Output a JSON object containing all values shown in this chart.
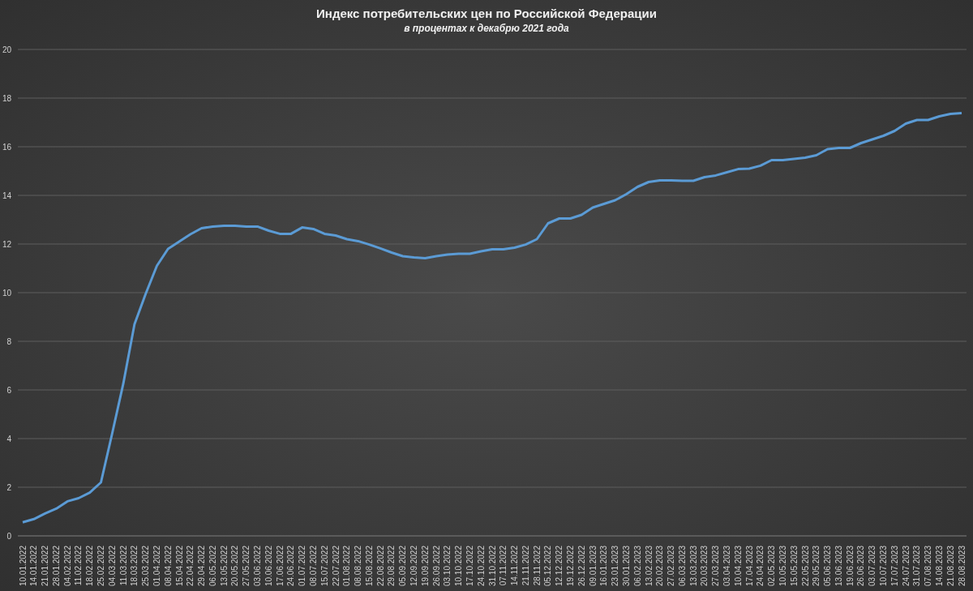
{
  "chart_data": {
    "type": "line",
    "title": "Индекс потребительских цен по Российской Федерации",
    "subtitle": "в процентах к декабрю 2021 года",
    "categories": [
      "10.01.2022",
      "14.01.2022",
      "21.01.2022",
      "28.01.2022",
      "04.02.2022",
      "11.02.2022",
      "18.02.2022",
      "25.02.2022",
      "04.03.2022",
      "11.03.2022",
      "18.03.2022",
      "25.03.2022",
      "01.04.2022",
      "08.04.2022",
      "15.04.2022",
      "22.04.2022",
      "29.04.2022",
      "06.05.2022",
      "13.05.2022",
      "20.05.2022",
      "27.05.2022",
      "03.06.2022",
      "10.06.2022",
      "17.06.2022",
      "24.06.2022",
      "01.07.2022",
      "08.07.2022",
      "15.07.2022",
      "22.07.2022",
      "01.08.2022",
      "08.08.2022",
      "15.08.2022",
      "22.08.2022",
      "29.08.2022",
      "05.09.2022",
      "12.09.2022",
      "19.09.2022",
      "26.09.2022",
      "03.10.2022",
      "10.10.2022",
      "17.10.2022",
      "24.10.2022",
      "31.10.2022",
      "07.11.2022",
      "14.11.2022",
      "21.11.2022",
      "28.11.2022",
      "05.12.2022",
      "12.12.2022",
      "19.12.2022",
      "26.12.2022",
      "09.01.2023",
      "16.01.2023",
      "23.01.2023",
      "30.01.2023",
      "06.02.2023",
      "13.02.2023",
      "20.02.2023",
      "27.02.2023",
      "06.03.2023",
      "13.03.2023",
      "20.03.2023",
      "27.03.2023",
      "03.04.2023",
      "10.04.2023",
      "17.04.2023",
      "24.04.2023",
      "02.05.2023",
      "10.05.2023",
      "15.05.2023",
      "22.05.2023",
      "29.05.2023",
      "05.06.2023",
      "13.06.2023",
      "19.06.2023",
      "26.06.2023",
      "03.07.2023",
      "10.07.2023",
      "17.07.2023",
      "24.07.2023",
      "31.07.2023",
      "07.08.2023",
      "14.08.2023",
      "21.08.2023",
      "28.08.2023"
    ],
    "series": [
      {
        "color": "#5b9bd5",
        "values": [
          0.56,
          0.69,
          0.92,
          1.12,
          1.42,
          1.55,
          1.78,
          2.2,
          4.2,
          6.26,
          8.7,
          9.95,
          11.1,
          11.8,
          12.1,
          12.4,
          12.65,
          12.72,
          12.75,
          12.75,
          12.72,
          12.72,
          12.55,
          12.42,
          12.42,
          12.68,
          12.62,
          12.42,
          12.35,
          12.2,
          12.12,
          11.98,
          11.82,
          11.65,
          11.5,
          11.45,
          11.42,
          11.5,
          11.57,
          11.6,
          11.6,
          11.7,
          11.78,
          11.78,
          11.85,
          11.98,
          12.2,
          12.85,
          13.05,
          13.05,
          13.2,
          13.5,
          13.65,
          13.8,
          14.05,
          14.35,
          14.55,
          14.62,
          14.62,
          14.6,
          14.6,
          14.75,
          14.82,
          14.95,
          15.08,
          15.1,
          15.22,
          15.45,
          15.45,
          15.5,
          15.55,
          15.65,
          15.9,
          15.95,
          15.95,
          16.15,
          16.3,
          16.45,
          16.65,
          16.95,
          17.1,
          17.1,
          17.25,
          17.35,
          17.38
        ]
      }
    ],
    "ylim": [
      0,
      20
    ],
    "yticks": [
      0,
      2,
      4,
      6,
      8,
      10,
      12,
      14,
      16,
      18,
      20
    ],
    "grid": "y",
    "legend": false,
    "marker": "none",
    "line_style": "solid"
  }
}
